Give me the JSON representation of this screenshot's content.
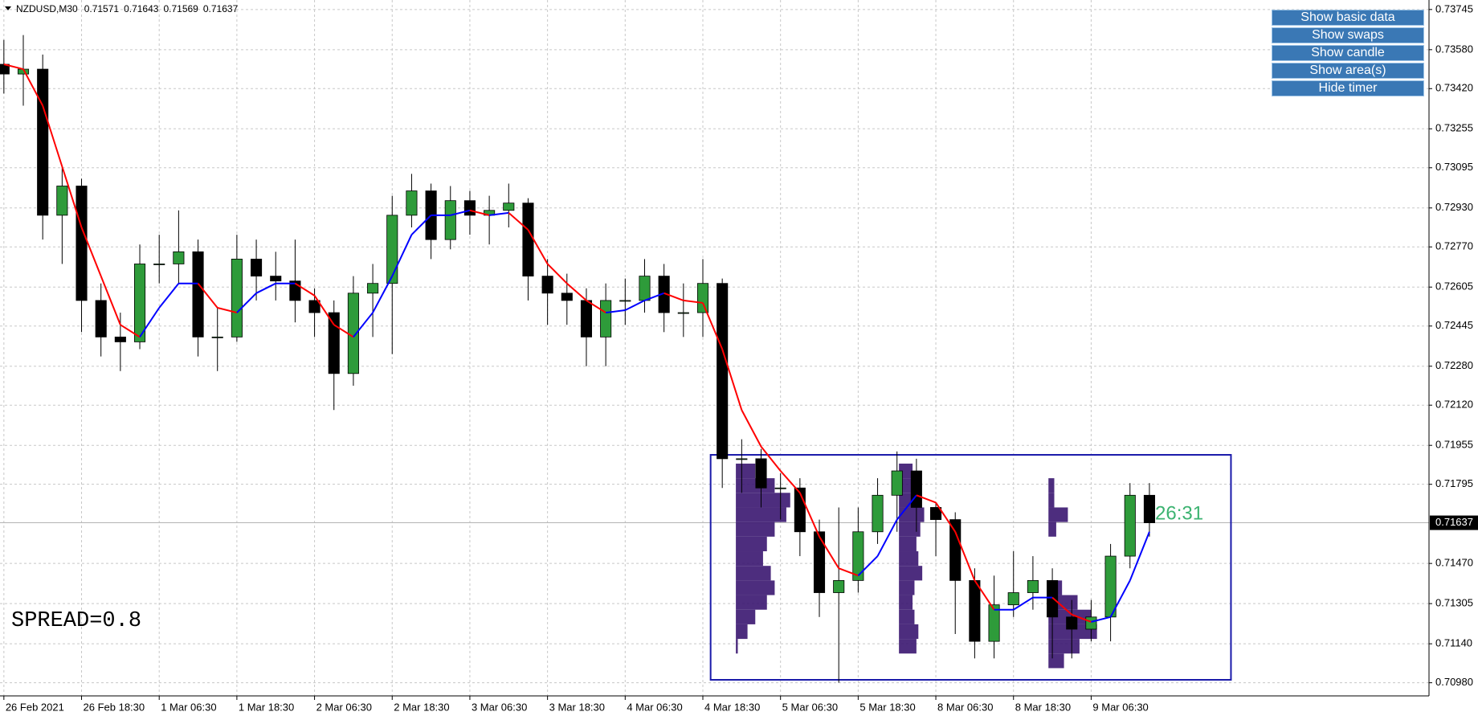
{
  "chart_data": {
    "type": "candlestick",
    "symbol": "NZDUSD,M30",
    "quote": [
      0.71571,
      0.71643,
      0.71569,
      0.71637
    ],
    "last_price": 0.71637,
    "spread_label": "SPREAD=0.8",
    "timer": "26:31",
    "grid": true,
    "up_color": "#2e9b3a",
    "down_color": "#000000",
    "xlim": [
      -0.2,
      73.4
    ],
    "ylim": [
      0.70926,
      0.73784
    ],
    "xticks": [
      {
        "value": 0,
        "label": "26 Feb 2021"
      },
      {
        "value": 4,
        "label": "26 Feb 18:30"
      },
      {
        "value": 8,
        "label": "1 Mar 06:30"
      },
      {
        "value": 12,
        "label": "1 Mar 18:30"
      },
      {
        "value": 16,
        "label": "2 Mar 06:30"
      },
      {
        "value": 20,
        "label": "2 Mar 18:30"
      },
      {
        "value": 24,
        "label": "3 Mar 06:30"
      },
      {
        "value": 28,
        "label": "3 Mar 18:30"
      },
      {
        "value": 32,
        "label": "4 Mar 06:30"
      },
      {
        "value": 36,
        "label": "4 Mar 18:30"
      },
      {
        "value": 40,
        "label": "5 Mar 06:30"
      },
      {
        "value": 44,
        "label": "5 Mar 18:30"
      },
      {
        "value": 48,
        "label": "8 Mar 06:30"
      },
      {
        "value": 52,
        "label": "8 Mar 18:30"
      },
      {
        "value": 56,
        "label": "9 Mar 06:30"
      }
    ],
    "yticks": [
      0.73745,
      {
        "value": 0.7358,
        "label": "0.73580"
      },
      {
        "value": 0.7342,
        "label": "0.73420"
      },
      0.73255,
      0.73095,
      {
        "value": 0.7293,
        "label": "0.72930"
      },
      {
        "value": 0.7277,
        "label": "0.72770"
      },
      0.72605,
      0.72445,
      {
        "value": 0.7228,
        "label": "0.72280"
      },
      {
        "value": 0.7212,
        "label": "0.72120"
      },
      0.71955,
      0.71795,
      {
        "value": 0.7147,
        "label": "0.71470"
      },
      0.71305,
      {
        "value": 0.7114,
        "label": "0.71140"
      },
      {
        "value": 0.7098,
        "label": "0.70980"
      }
    ],
    "open": [
      0.7352,
      0.7348,
      0.735,
      0.729,
      0.7302,
      0.7255,
      0.724,
      0.7238,
      0.727,
      0.727,
      0.7275,
      0.724,
      0.724,
      0.7272,
      0.7265,
      0.7263,
      0.7255,
      0.725,
      0.7225,
      0.7258,
      0.7262,
      0.729,
      0.73,
      0.728,
      0.7296,
      0.729,
      0.7292,
      0.7295,
      0.7265,
      0.7258,
      0.7255,
      0.724,
      0.7255,
      0.7255,
      0.7265,
      0.725,
      0.725,
      0.7262,
      0.719,
      0.719,
      0.7178,
      0.7178,
      0.716,
      0.7135,
      0.714,
      0.716,
      0.7175,
      0.7185,
      0.717,
      0.7165,
      0.714,
      0.7115,
      0.713,
      0.7135,
      0.714,
      0.7125,
      0.712,
      0.7125,
      0.715,
      0.7175
    ],
    "high": [
      0.7362,
      0.7364,
      0.7356,
      0.731,
      0.7305,
      0.7262,
      0.725,
      0.7278,
      0.7282,
      0.7292,
      0.728,
      0.7252,
      0.7282,
      0.728,
      0.7275,
      0.728,
      0.726,
      0.7255,
      0.7265,
      0.727,
      0.7298,
      0.7307,
      0.7303,
      0.7302,
      0.73,
      0.7298,
      0.7303,
      0.7297,
      0.7272,
      0.7266,
      0.726,
      0.7262,
      0.7264,
      0.7272,
      0.727,
      0.7262,
      0.7272,
      0.7264,
      0.7198,
      0.7194,
      0.7184,
      0.7182,
      0.7165,
      0.717,
      0.717,
      0.7182,
      0.7193,
      0.719,
      0.7172,
      0.7168,
      0.7145,
      0.7142,
      0.7152,
      0.715,
      0.7145,
      0.7132,
      0.7132,
      0.7155,
      0.718,
      0.718
    ],
    "low": [
      0.734,
      0.7335,
      0.728,
      0.727,
      0.7242,
      0.7232,
      0.7226,
      0.7235,
      0.7262,
      0.7262,
      0.7232,
      0.7226,
      0.7238,
      0.7255,
      0.7255,
      0.7246,
      0.724,
      0.721,
      0.722,
      0.724,
      0.7233,
      0.7285,
      0.7272,
      0.7276,
      0.7282,
      0.7278,
      0.7285,
      0.7255,
      0.7245,
      0.7245,
      0.7228,
      0.7228,
      0.7245,
      0.725,
      0.7242,
      0.724,
      0.724,
      0.7178,
      0.7176,
      0.717,
      0.7165,
      0.715,
      0.7125,
      0.7098,
      0.7135,
      0.7155,
      0.716,
      0.716,
      0.715,
      0.7118,
      0.7108,
      0.7108,
      0.7125,
      0.7128,
      0.7108,
      0.7108,
      0.7115,
      0.7115,
      0.7145,
      0.7158
    ],
    "close": [
      0.7348,
      0.735,
      0.729,
      0.7302,
      0.7255,
      0.724,
      0.7238,
      0.727,
      0.727,
      0.7275,
      0.724,
      0.724,
      0.7272,
      0.7265,
      0.7263,
      0.7255,
      0.725,
      0.7225,
      0.7258,
      0.7262,
      0.729,
      0.73,
      0.728,
      0.7296,
      0.729,
      0.7292,
      0.7295,
      0.7265,
      0.7258,
      0.7255,
      0.724,
      0.7255,
      0.7255,
      0.7265,
      0.725,
      0.725,
      0.7262,
      0.719,
      0.719,
      0.7178,
      0.7178,
      0.716,
      0.7135,
      0.714,
      0.716,
      0.7175,
      0.7185,
      0.717,
      0.7165,
      0.714,
      0.7115,
      0.713,
      0.7135,
      0.714,
      0.7125,
      0.712,
      0.7125,
      0.715,
      0.7175,
      0.71637
    ],
    "ma": {
      "up_color": "#0000ff",
      "down_color": "#ff0000",
      "values": [
        0.7352,
        0.735,
        0.7335,
        0.731,
        0.7285,
        0.7265,
        0.7245,
        0.724,
        0.7252,
        0.7262,
        0.7262,
        0.7252,
        0.725,
        0.7258,
        0.7262,
        0.7262,
        0.7257,
        0.7245,
        0.724,
        0.725,
        0.7265,
        0.7282,
        0.729,
        0.729,
        0.7292,
        0.729,
        0.7291,
        0.7284,
        0.727,
        0.7262,
        0.7255,
        0.725,
        0.7251,
        0.7255,
        0.7258,
        0.7255,
        0.7254,
        0.7235,
        0.721,
        0.7195,
        0.7185,
        0.7176,
        0.7158,
        0.7145,
        0.7142,
        0.715,
        0.7165,
        0.7175,
        0.7172,
        0.716,
        0.714,
        0.7128,
        0.7128,
        0.7133,
        0.7133,
        0.7126,
        0.7123,
        0.7125,
        0.714,
        0.716
      ]
    },
    "area": {
      "x": [
        36.4,
        63.2
      ],
      "ylim": [
        0.70992,
        0.71916
      ],
      "color": "#1a1aaa"
    },
    "profiles": {
      "color": "#3a1670",
      "step": 0.0006,
      "items": [
        {
          "start": 37.7,
          "levels": [
            0.711,
            0.7116,
            0.7122,
            0.7128,
            0.7134,
            0.714,
            0.7146,
            0.7152,
            0.7158,
            0.7164,
            0.717,
            0.7176,
            0.7182
          ],
          "widths": [
            0.1,
            0.6,
            1.0,
            1.6,
            2.0,
            1.8,
            1.4,
            1.6,
            2.0,
            2.6,
            2.8,
            2.0,
            1.0
          ]
        },
        {
          "start": 46.1,
          "levels": [
            0.711,
            0.7116,
            0.7122,
            0.7128,
            0.7134,
            0.714,
            0.7146,
            0.7152,
            0.7158,
            0.7164,
            0.717,
            0.7176,
            0.7182
          ],
          "widths": [
            0.9,
            1.0,
            0.8,
            0.7,
            0.8,
            1.2,
            1.0,
            0.9,
            1.1,
            1.3,
            1.0,
            0.9,
            0.7
          ]
        },
        {
          "start": 53.8,
          "levels": [
            0.7104,
            0.711,
            0.7116,
            0.7122,
            0.7128,
            0.7134,
            0.7158,
            0.7164,
            0.717,
            0.7176
          ],
          "widths": [
            0.8,
            1.6,
            2.5,
            2.2,
            1.5,
            0.7,
            0.4,
            1.0,
            0.3,
            0.3
          ]
        }
      ]
    }
  },
  "buttons": [
    "Show basic data",
    "Show swaps",
    "Show candle",
    "Show area(s)",
    "Hide timer"
  ]
}
